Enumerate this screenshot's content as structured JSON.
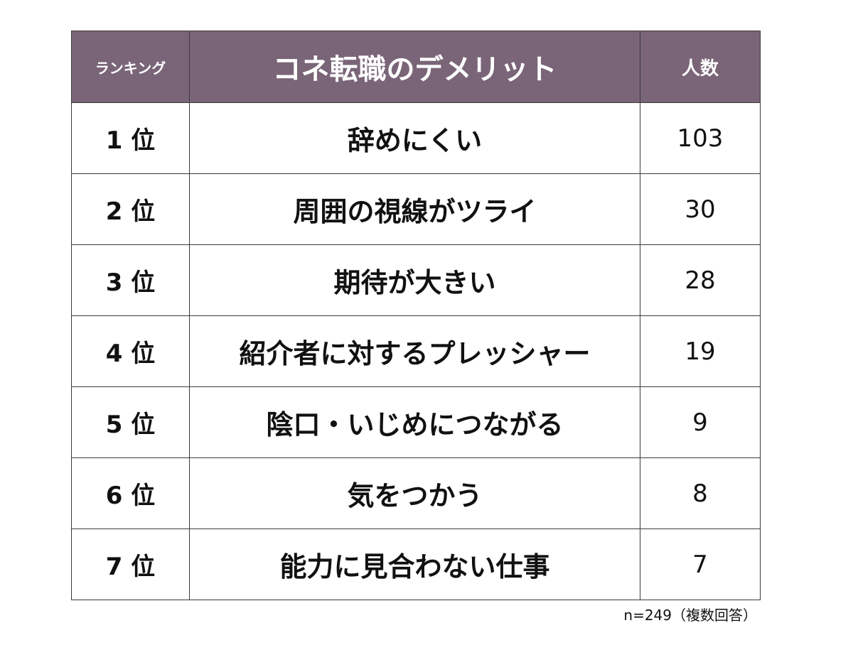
{
  "chart_data": {
    "type": "table",
    "columns": [
      "ランキング",
      "コネ転職のデメリット",
      "人数"
    ],
    "rows": [
      {
        "rank": "1 位",
        "item": "辞めにくい",
        "count": 103
      },
      {
        "rank": "2 位",
        "item": "周囲の視線がツライ",
        "count": 30
      },
      {
        "rank": "3 位",
        "item": "期待が大きい",
        "count": 28
      },
      {
        "rank": "4 位",
        "item": "紹介者に対するプレッシャー",
        "count": 19
      },
      {
        "rank": "5 位",
        "item": "陰口・いじめにつながる",
        "count": 9
      },
      {
        "rank": "6 位",
        "item": "気をつかう",
        "count": 8
      },
      {
        "rank": "7 位",
        "item": "能力に見合わない仕事",
        "count": 7
      }
    ],
    "note": "n=249（複数回答）",
    "header_color": "#7a6578"
  }
}
